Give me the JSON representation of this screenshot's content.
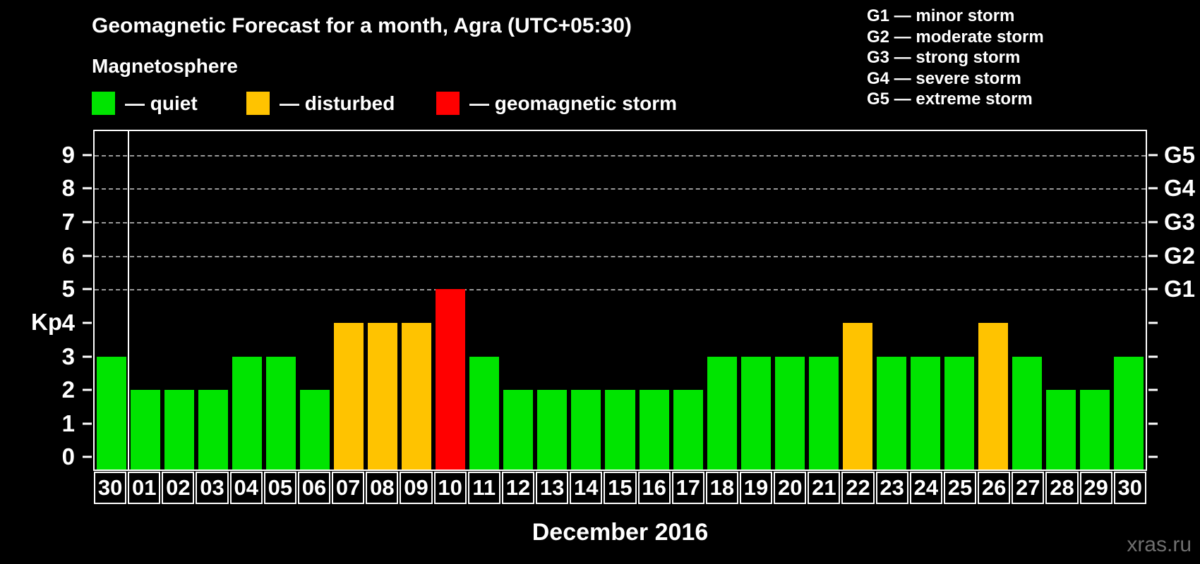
{
  "header": {
    "title": "Geomagnetic Forecast for a month, Agra (UTC+05:30)",
    "subtitle": "Magnetosphere"
  },
  "legend": {
    "items": [
      {
        "name": "quiet",
        "label": "— quiet",
        "color": "#00e400"
      },
      {
        "name": "disturbed",
        "label": "— disturbed",
        "color": "#ffc300"
      },
      {
        "name": "storm",
        "label": "— geomagnetic storm",
        "color": "#ff0000"
      }
    ]
  },
  "storm_scale": [
    "G1 — minor storm",
    "G2 — moderate storm",
    "G3 — strong storm",
    "G4 — severe storm",
    "G5 — extreme storm"
  ],
  "chart_data": {
    "type": "bar",
    "title": "Geomagnetic Forecast for a month, Agra (UTC+05:30)",
    "ylabel": "Kp",
    "xlabel": "December 2016",
    "categories": [
      "30",
      "01",
      "02",
      "03",
      "04",
      "05",
      "06",
      "07",
      "08",
      "09",
      "10",
      "11",
      "12",
      "13",
      "14",
      "15",
      "16",
      "17",
      "18",
      "19",
      "20",
      "21",
      "22",
      "23",
      "24",
      "25",
      "26",
      "27",
      "28",
      "29",
      "30"
    ],
    "values": [
      3,
      2,
      2,
      2,
      3,
      3,
      2,
      4,
      4,
      4,
      5,
      3,
      2,
      2,
      2,
      2,
      2,
      2,
      3,
      3,
      3,
      3,
      4,
      3,
      3,
      3,
      4,
      3,
      2,
      2,
      3
    ],
    "statuses": [
      "quiet",
      "quiet",
      "quiet",
      "quiet",
      "quiet",
      "quiet",
      "quiet",
      "disturbed",
      "disturbed",
      "disturbed",
      "storm",
      "quiet",
      "quiet",
      "quiet",
      "quiet",
      "quiet",
      "quiet",
      "quiet",
      "quiet",
      "quiet",
      "quiet",
      "quiet",
      "disturbed",
      "quiet",
      "quiet",
      "quiet",
      "disturbed",
      "quiet",
      "quiet",
      "quiet",
      "quiet"
    ],
    "colors": {
      "quiet": "#00e400",
      "disturbed": "#ffc300",
      "storm": "#ff0000"
    },
    "ylim": [
      0,
      9
    ],
    "yticks": [
      0,
      1,
      2,
      3,
      4,
      5,
      6,
      7,
      8,
      9
    ],
    "gridlines": [
      5,
      6,
      7,
      8,
      9
    ],
    "right_axis_labels": [
      {
        "value": 5,
        "label": "G1"
      },
      {
        "value": 6,
        "label": "G2"
      },
      {
        "value": 7,
        "label": "G3"
      },
      {
        "value": 8,
        "label": "G4"
      },
      {
        "value": 9,
        "label": "G5"
      }
    ],
    "grid": "horizontal dashed lines at storm levels only",
    "legend_position": "top-left"
  },
  "footer": {
    "caption": "December 2016",
    "watermark": "xras.ru"
  }
}
